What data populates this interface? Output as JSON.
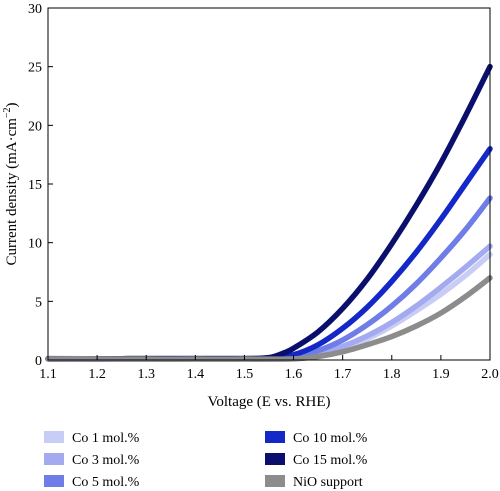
{
  "chart_data": {
    "type": "line",
    "xlabel": "Voltage (E vs. RHE)",
    "ylabel_main": "Current density (mA·cm",
    "ylabel_sup": "−2",
    "ylabel_close": ")",
    "xlim": [
      1.1,
      2.0
    ],
    "ylim": [
      0,
      30
    ],
    "xticks": [
      1.1,
      1.2,
      1.3,
      1.4,
      1.5,
      1.6,
      1.7,
      1.8,
      1.9,
      2.0
    ],
    "xtick_labels": [
      "1.1",
      "1.2",
      "1.3",
      "1.4",
      "1.5",
      "1.6",
      "1.7",
      "1.8",
      "1.9",
      "2.0"
    ],
    "yticks": [
      0,
      5,
      10,
      15,
      20,
      25,
      30
    ],
    "ytick_labels": [
      "0",
      "5",
      "10",
      "15",
      "20",
      "25",
      "30"
    ],
    "grid": false,
    "legend_position": "bottom",
    "series": [
      {
        "name": "Co 1 mol.%",
        "color": "#c8cdf5",
        "points": [
          [
            1.1,
            0.15
          ],
          [
            1.2,
            0.1
          ],
          [
            1.3,
            0.08
          ],
          [
            1.4,
            0.1
          ],
          [
            1.5,
            0.1
          ],
          [
            1.55,
            0.1
          ],
          [
            1.6,
            0.15
          ],
          [
            1.65,
            0.4
          ],
          [
            1.7,
            0.95
          ],
          [
            1.75,
            1.8
          ],
          [
            1.8,
            2.9
          ],
          [
            1.85,
            4.2
          ],
          [
            1.9,
            5.6
          ],
          [
            1.95,
            7.2
          ],
          [
            2.0,
            9.0
          ]
        ]
      },
      {
        "name": "Co 3 mol.%",
        "color": "#a3aaf0",
        "points": [
          [
            1.1,
            0.1
          ],
          [
            1.2,
            0.1
          ],
          [
            1.3,
            0.08
          ],
          [
            1.4,
            0.1
          ],
          [
            1.5,
            0.1
          ],
          [
            1.55,
            0.1
          ],
          [
            1.6,
            0.18
          ],
          [
            1.65,
            0.5
          ],
          [
            1.7,
            1.15
          ],
          [
            1.75,
            2.05
          ],
          [
            1.8,
            3.2
          ],
          [
            1.85,
            4.6
          ],
          [
            1.9,
            6.2
          ],
          [
            1.95,
            7.9
          ],
          [
            2.0,
            9.7
          ]
        ]
      },
      {
        "name": "Co 5 mol.%",
        "color": "#6f7de6",
        "points": [
          [
            1.1,
            0.1
          ],
          [
            1.2,
            0.1
          ],
          [
            1.3,
            0.1
          ],
          [
            1.4,
            0.1
          ],
          [
            1.5,
            0.1
          ],
          [
            1.55,
            0.12
          ],
          [
            1.6,
            0.3
          ],
          [
            1.65,
            0.8
          ],
          [
            1.7,
            1.7
          ],
          [
            1.75,
            3.0
          ],
          [
            1.8,
            4.6
          ],
          [
            1.85,
            6.5
          ],
          [
            1.9,
            8.7
          ],
          [
            1.95,
            11.1
          ],
          [
            2.0,
            13.8
          ]
        ]
      },
      {
        "name": "Co 10 mol.%",
        "color": "#1427c7",
        "points": [
          [
            1.1,
            0.1
          ],
          [
            1.2,
            0.1
          ],
          [
            1.3,
            0.12
          ],
          [
            1.4,
            0.12
          ],
          [
            1.5,
            0.12
          ],
          [
            1.55,
            0.15
          ],
          [
            1.6,
            0.45
          ],
          [
            1.65,
            1.3
          ],
          [
            1.7,
            2.7
          ],
          [
            1.75,
            4.5
          ],
          [
            1.8,
            6.7
          ],
          [
            1.85,
            9.2
          ],
          [
            1.9,
            12.0
          ],
          [
            1.95,
            15.0
          ],
          [
            2.0,
            18.0
          ]
        ]
      },
      {
        "name": "Co 15 mol.%",
        "color": "#0a0f6e",
        "points": [
          [
            1.1,
            0.1
          ],
          [
            1.2,
            0.1
          ],
          [
            1.3,
            0.12
          ],
          [
            1.4,
            0.12
          ],
          [
            1.5,
            0.12
          ],
          [
            1.55,
            0.2
          ],
          [
            1.58,
            0.6
          ],
          [
            1.6,
            1.0
          ],
          [
            1.65,
            2.4
          ],
          [
            1.7,
            4.4
          ],
          [
            1.75,
            6.9
          ],
          [
            1.8,
            9.9
          ],
          [
            1.85,
            13.2
          ],
          [
            1.9,
            16.8
          ],
          [
            1.95,
            20.8
          ],
          [
            2.0,
            25.0
          ]
        ]
      },
      {
        "name": "NiO support",
        "color": "#8c8c8c",
        "points": [
          [
            1.1,
            0.1
          ],
          [
            1.2,
            0.1
          ],
          [
            1.3,
            0.08
          ],
          [
            1.4,
            0.08
          ],
          [
            1.5,
            0.08
          ],
          [
            1.6,
            0.1
          ],
          [
            1.65,
            0.3
          ],
          [
            1.7,
            0.7
          ],
          [
            1.75,
            1.3
          ],
          [
            1.8,
            2.0
          ],
          [
            1.85,
            2.9
          ],
          [
            1.9,
            4.0
          ],
          [
            1.95,
            5.4
          ],
          [
            2.0,
            7.0
          ]
        ]
      }
    ],
    "legend_left": [
      "Co 1 mol.%",
      "Co 3 mol.%",
      "Co 5 mol.%"
    ],
    "legend_right": [
      "Co 10 mol.%",
      "Co 15 mol.%",
      "NiO support"
    ]
  }
}
